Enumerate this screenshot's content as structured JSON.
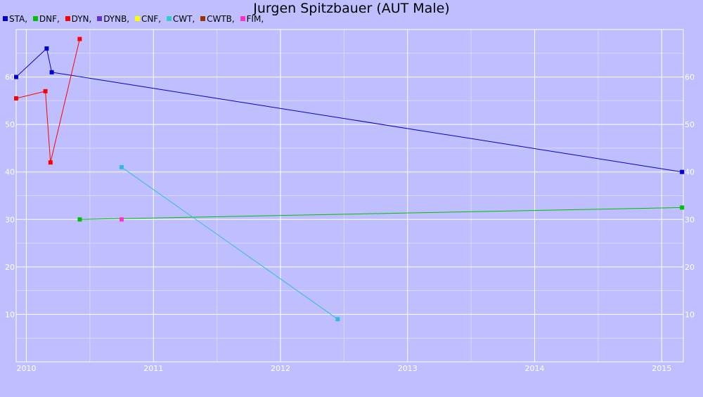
{
  "chart_data": {
    "type": "line",
    "title": "Jurgen Spitzbauer (AUT Male)",
    "xlabel": "",
    "ylabel": "",
    "xlim": [
      2009.92,
      2015.17
    ],
    "ylim": [
      0,
      70
    ],
    "x_ticks": [
      "2010",
      "2011",
      "2012",
      "2013",
      "2014",
      "2015"
    ],
    "y_ticks": [
      "10",
      "20",
      "30",
      "40",
      "50",
      "60"
    ],
    "grid": true,
    "legend_position": "top-left",
    "legend": [
      {
        "name": "STA,",
        "color": "#0000cc"
      },
      {
        "name": "DNF,",
        "color": "#00c000"
      },
      {
        "name": "DYN,",
        "color": "#ff0000"
      },
      {
        "name": "DYNB,",
        "color": "#6633cc"
      },
      {
        "name": "CNF,",
        "color": "#ffff00"
      },
      {
        "name": "CWT,",
        "color": "#33cccc"
      },
      {
        "name": "CWTB,",
        "color": "#993300"
      },
      {
        "name": "FIM,",
        "color": "#ff33cc"
      }
    ],
    "series": [
      {
        "name": "STA",
        "color": "#0000cc",
        "x": [
          2009.92,
          2010.16,
          2010.2,
          2015.16
        ],
        "y": [
          60,
          66,
          61,
          40
        ]
      },
      {
        "name": "DNF",
        "color": "#00c000",
        "x": [
          2010.42,
          2015.16
        ],
        "y": [
          30,
          32.5
        ]
      },
      {
        "name": "DYN",
        "color": "#ff0000",
        "x": [
          2009.92,
          2010.15,
          2010.19,
          2010.42
        ],
        "y": [
          55.5,
          57,
          42,
          68
        ]
      },
      {
        "name": "CWT",
        "color": "#33bbdd",
        "x": [
          2010.75,
          2012.45
        ],
        "y": [
          41,
          9
        ]
      },
      {
        "name": "FIM",
        "color": "#ff33cc",
        "x": [
          2010.75
        ],
        "y": [
          30
        ]
      }
    ]
  }
}
